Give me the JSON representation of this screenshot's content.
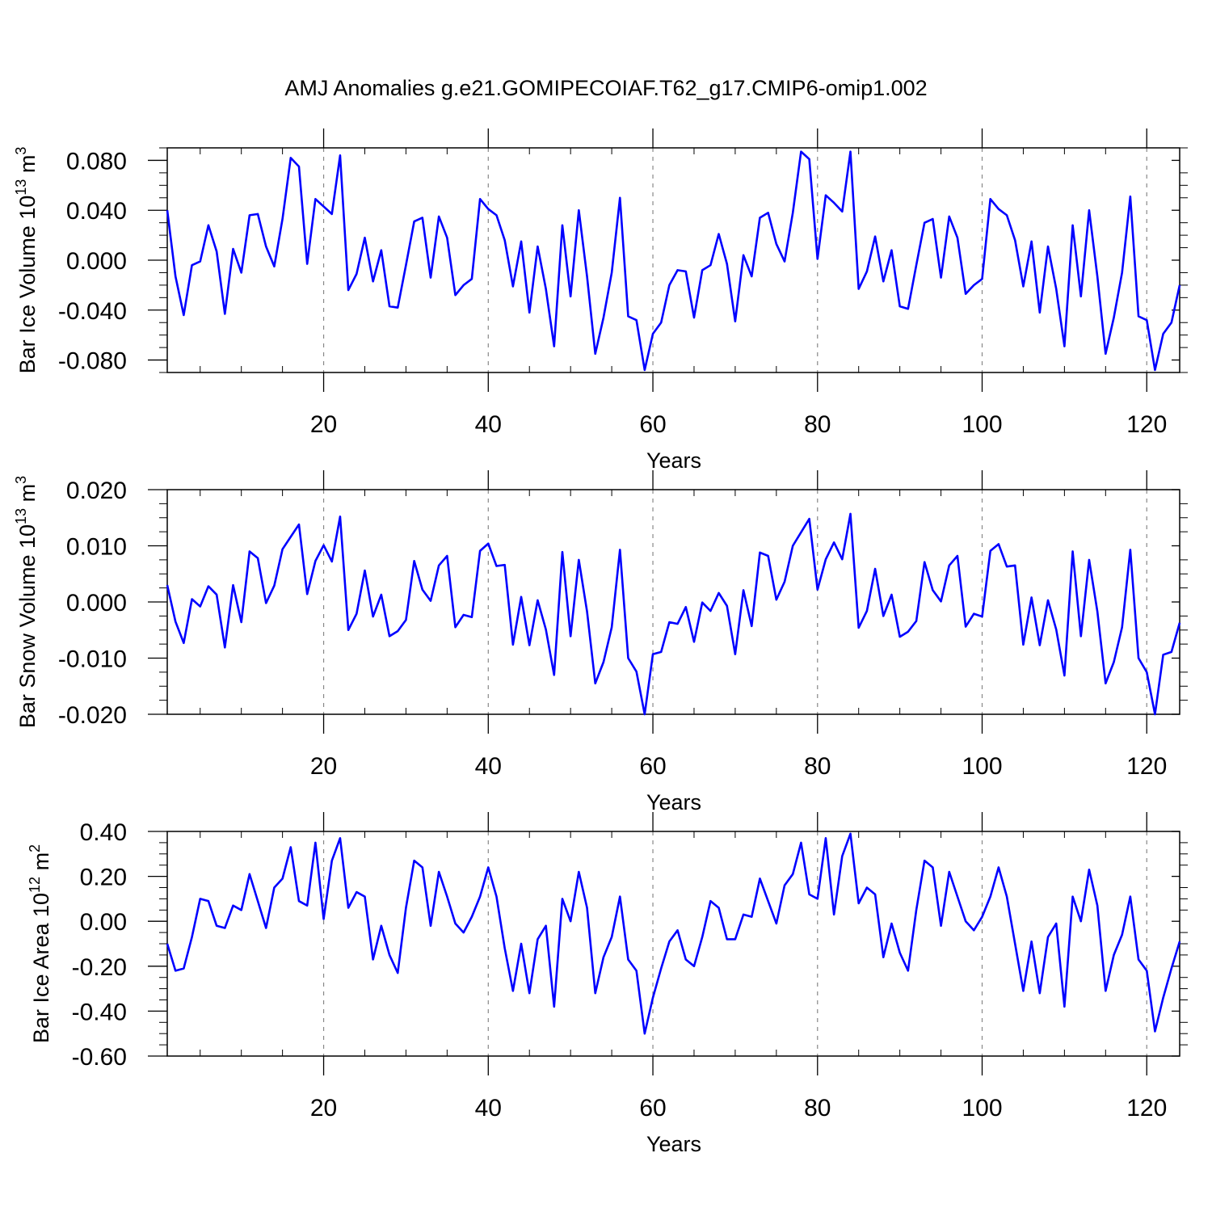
{
  "title": "AMJ Anomalies g.e21.GOMIPECOIAF.T62_g17.CMIP6-omip1.002",
  "colors": {
    "line": "#0000ff",
    "axis": "#000000",
    "grid": "#888888"
  },
  "chart_data": [
    {
      "type": "line",
      "ylabel": {
        "main": "Bar Ice Volume 10",
        "sup1": "13",
        "mid": " m",
        "sup2": "3"
      },
      "xlabel": "Years",
      "xlim": [
        1,
        124
      ],
      "ylim": [
        -0.09,
        0.09
      ],
      "xticks": [
        20,
        40,
        60,
        80,
        100,
        120
      ],
      "yticks": [
        -0.08,
        -0.04,
        0.0,
        0.04,
        0.08
      ],
      "ytick_labels": [
        "-0.080",
        "-0.040",
        "0.000",
        "0.040",
        "0.080"
      ],
      "grid_x": "dashed at major x ticks",
      "x_start": 1,
      "series": [
        {
          "values": [
            0.04,
            -0.013,
            -0.044,
            -0.004,
            -0.001,
            0.028,
            0.007,
            -0.043,
            0.009,
            -0.01,
            0.036,
            0.037,
            0.011,
            -0.005,
            0.033,
            0.082,
            0.075,
            -0.003,
            0.049,
            0.043,
            0.037,
            0.084,
            -0.024,
            -0.011,
            0.018,
            -0.017,
            0.008,
            -0.037,
            -0.038,
            -0.004,
            0.031,
            0.034,
            -0.014,
            0.035,
            0.018,
            -0.028,
            -0.02,
            -0.015,
            0.049,
            0.041,
            0.036,
            0.016,
            -0.021,
            0.015,
            -0.042,
            0.011,
            -0.023,
            -0.069,
            0.028,
            -0.029,
            0.04,
            -0.013,
            -0.075,
            -0.046,
            -0.01,
            0.05,
            -0.045,
            -0.048,
            -0.088,
            -0.059,
            -0.05,
            -0.02,
            -0.008,
            -0.009,
            -0.046,
            -0.008,
            -0.004,
            0.021,
            -0.003,
            -0.049,
            0.004,
            -0.013,
            0.034,
            0.038,
            0.013,
            -0.001,
            0.038,
            0.087,
            0.081,
            0.001,
            0.052,
            0.046,
            0.039,
            0.087,
            -0.023,
            -0.009,
            0.019,
            -0.017,
            0.008,
            -0.037,
            -0.039,
            -0.004,
            0.03,
            0.033,
            -0.014,
            0.035,
            0.018,
            -0.027,
            -0.02,
            -0.015,
            0.049,
            0.041,
            0.036,
            0.016,
            -0.021,
            0.015,
            -0.042,
            0.011,
            -0.023,
            -0.069,
            0.028,
            -0.029,
            0.04,
            -0.013,
            -0.075,
            -0.046,
            -0.01,
            0.051,
            -0.045,
            -0.048,
            -0.088,
            -0.059,
            -0.05,
            -0.02
          ]
        }
      ]
    },
    {
      "type": "line",
      "ylabel": {
        "main": "Bar Snow Volume 10",
        "sup1": "13",
        "mid": " m",
        "sup2": "3"
      },
      "xlabel": "Years",
      "xlim": [
        1,
        124
      ],
      "ylim": [
        -0.02,
        0.02
      ],
      "xticks": [
        20,
        40,
        60,
        80,
        100,
        120
      ],
      "yticks": [
        -0.02,
        -0.01,
        0.0,
        0.01,
        0.02
      ],
      "ytick_labels": [
        "-0.020",
        "-0.010",
        "0.000",
        "0.010",
        "0.020"
      ],
      "grid_x": "dashed at major x ticks",
      "x_start": 1,
      "series": [
        {
          "values": [
            0.003,
            -0.0035,
            -0.0073,
            0.0005,
            -0.0008,
            0.0028,
            0.0013,
            -0.0081,
            0.003,
            -0.0036,
            0.009,
            0.0078,
            -0.0002,
            0.0029,
            0.0094,
            0.0116,
            0.0138,
            0.0014,
            0.0073,
            0.0101,
            0.0072,
            0.0152,
            -0.005,
            -0.0021,
            0.0056,
            -0.0026,
            0.0013,
            -0.0061,
            -0.0052,
            -0.0032,
            0.0073,
            0.0022,
            0.0002,
            0.0065,
            0.0082,
            -0.0045,
            -0.0023,
            -0.0027,
            0.0091,
            0.0104,
            0.0064,
            0.0066,
            -0.0076,
            0.0009,
            -0.0077,
            0.0003,
            -0.0049,
            -0.013,
            0.0089,
            -0.0061,
            0.0075,
            -0.0017,
            -0.0145,
            -0.0107,
            -0.0045,
            0.0093,
            -0.01,
            -0.0124,
            -0.02,
            -0.0093,
            -0.0089,
            -0.0036,
            -0.0039,
            -0.0009,
            -0.0071,
            -0.0001,
            -0.0016,
            0.0016,
            -0.0007,
            -0.0093,
            0.0021,
            -0.0043,
            0.0088,
            0.0082,
            0.0004,
            0.0036,
            0.01,
            0.0124,
            0.0148,
            0.0022,
            0.0076,
            0.0106,
            0.0076,
            0.0157,
            -0.0046,
            -0.0016,
            0.0059,
            -0.0025,
            0.0013,
            -0.0062,
            -0.0053,
            -0.0034,
            0.0071,
            0.0021,
            0.0001,
            0.0065,
            0.0082,
            -0.0044,
            -0.0021,
            -0.0026,
            0.0091,
            0.0103,
            0.0063,
            0.0065,
            -0.0076,
            0.0008,
            -0.0077,
            0.0003,
            -0.0049,
            -0.0131,
            0.009,
            -0.0061,
            0.0075,
            -0.0017,
            -0.0145,
            -0.0107,
            -0.0045,
            0.0093,
            -0.01,
            -0.0125,
            -0.02,
            -0.0094,
            -0.0089,
            -0.0037
          ]
        }
      ]
    },
    {
      "type": "line",
      "ylabel": {
        "main": "Bar Ice Area 10",
        "sup1": "12",
        "mid": " m",
        "sup2": "2"
      },
      "xlabel": "Years",
      "xlim": [
        1,
        124
      ],
      "ylim": [
        -0.6,
        0.4
      ],
      "xticks": [
        20,
        40,
        60,
        80,
        100,
        120
      ],
      "yticks": [
        -0.6,
        -0.4,
        -0.2,
        0.0,
        0.2,
        0.4
      ],
      "ytick_labels": [
        "-0.60",
        "-0.40",
        "-0.20",
        "0.00",
        "0.20",
        "0.40"
      ],
      "grid_x": "dashed at major x ticks",
      "x_start": 1,
      "series": [
        {
          "values": [
            -0.1,
            -0.22,
            -0.21,
            -0.07,
            0.1,
            0.09,
            -0.02,
            -0.03,
            0.07,
            0.05,
            0.21,
            0.09,
            -0.03,
            0.15,
            0.19,
            0.33,
            0.09,
            0.07,
            0.35,
            0.01,
            0.27,
            0.37,
            0.06,
            0.13,
            0.11,
            -0.17,
            -0.02,
            -0.15,
            -0.23,
            0.06,
            0.27,
            0.24,
            -0.02,
            0.22,
            0.11,
            -0.01,
            -0.05,
            0.02,
            0.11,
            0.24,
            0.11,
            -0.12,
            -0.31,
            -0.1,
            -0.32,
            -0.08,
            -0.02,
            -0.38,
            0.1,
            0.0,
            0.22,
            0.06,
            -0.32,
            -0.16,
            -0.07,
            0.11,
            -0.17,
            -0.22,
            -0.5,
            -0.34,
            -0.21,
            -0.09,
            -0.04,
            -0.17,
            -0.2,
            -0.07,
            0.09,
            0.06,
            -0.08,
            -0.08,
            0.03,
            0.02,
            0.19,
            0.09,
            -0.01,
            0.16,
            0.21,
            0.35,
            0.12,
            0.1,
            0.37,
            0.03,
            0.29,
            0.39,
            0.08,
            0.15,
            0.12,
            -0.16,
            -0.01,
            -0.14,
            -0.22,
            0.05,
            0.27,
            0.24,
            -0.02,
            0.22,
            0.11,
            0.0,
            -0.04,
            0.02,
            0.11,
            0.24,
            0.11,
            -0.1,
            -0.31,
            -0.09,
            -0.32,
            -0.07,
            -0.01,
            -0.38,
            0.11,
            0.0,
            0.23,
            0.07,
            -0.31,
            -0.15,
            -0.06,
            0.11,
            -0.17,
            -0.22,
            -0.49,
            -0.34,
            -0.21,
            -0.09
          ]
        }
      ]
    }
  ]
}
